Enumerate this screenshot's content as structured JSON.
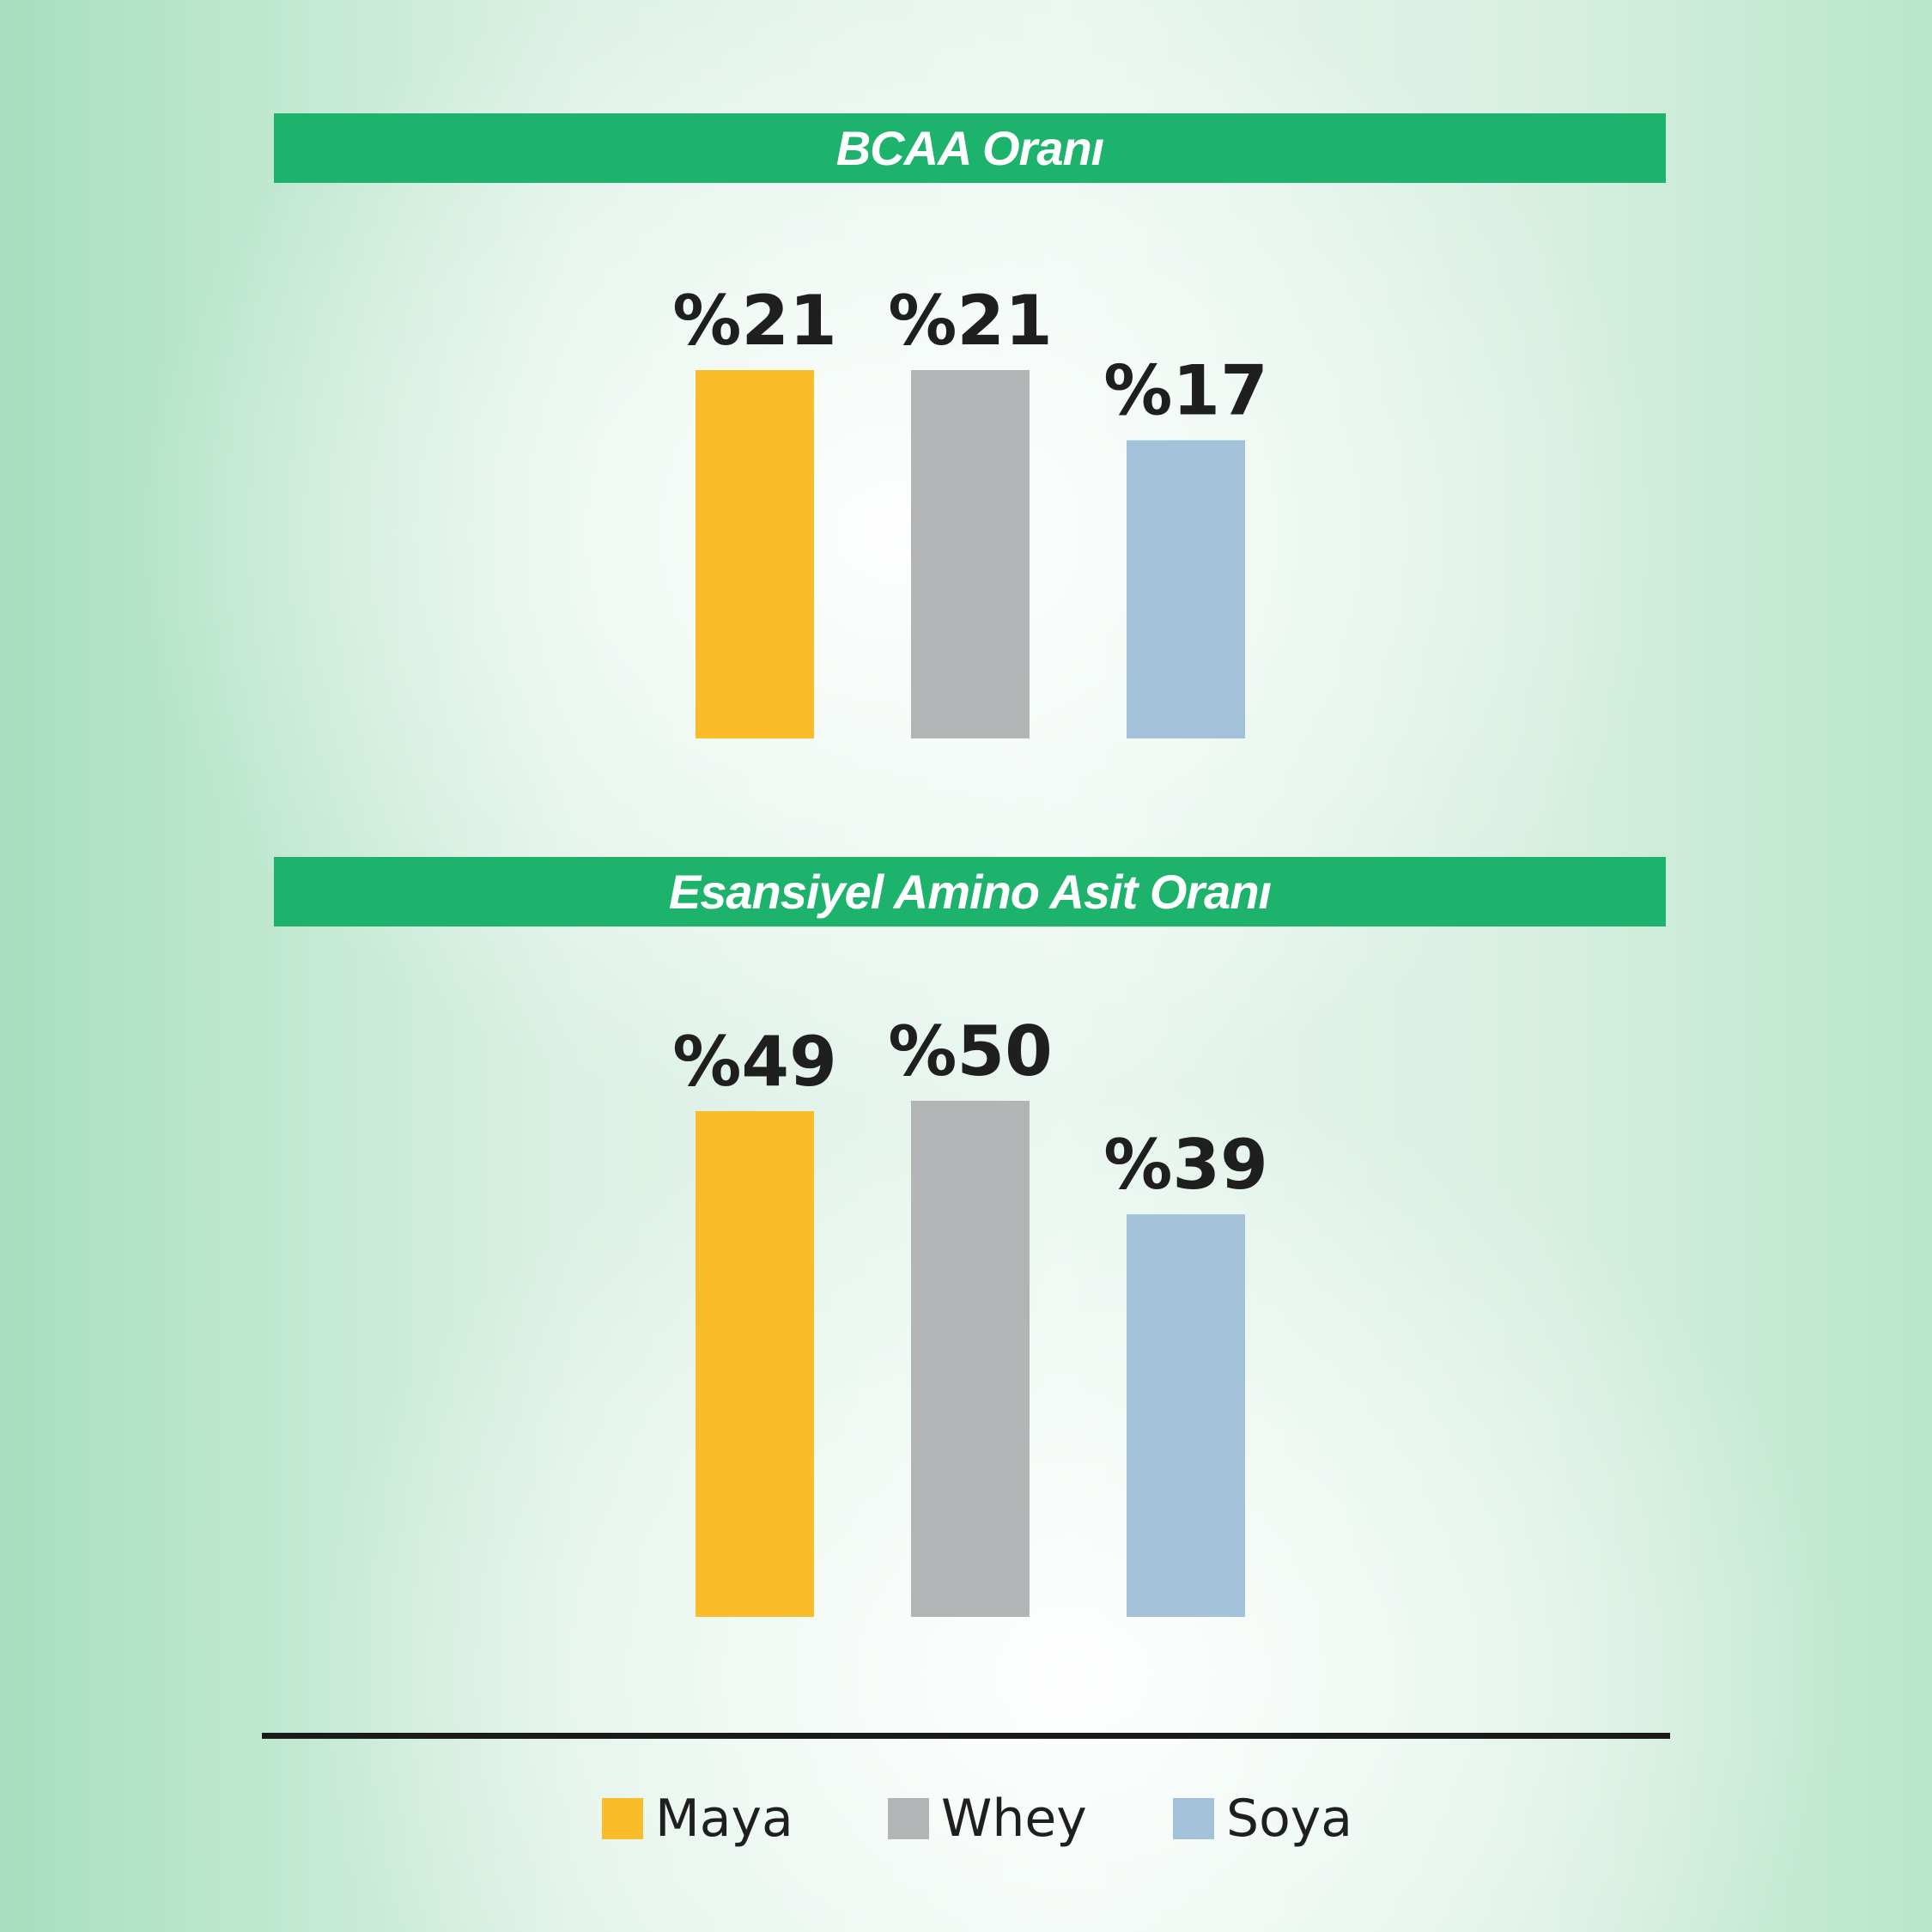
{
  "chart_data": [
    {
      "type": "bar",
      "title": "BCAA Oranı",
      "categories": [
        "Maya",
        "Whey",
        "Soya"
      ],
      "values": [
        21,
        21,
        17
      ],
      "labels": [
        "%21",
        "%21",
        "%17"
      ],
      "colors": [
        "#fbbc2a",
        "#b3b4b6",
        "#a3c1d9"
      ],
      "ylim": [
        0,
        21
      ],
      "grid": false
    },
    {
      "type": "bar",
      "title": "Esansiyel Amino Asit Oranı",
      "categories": [
        "Maya",
        "Whey",
        "Soya"
      ],
      "values": [
        49,
        50,
        39
      ],
      "labels": [
        "%49",
        "%50",
        "%39"
      ],
      "colors": [
        "#fbbc2a",
        "#b3b4b6",
        "#a3c1d9"
      ],
      "ylim": [
        0,
        50
      ],
      "grid": false
    }
  ],
  "header_color": "#1eb36c",
  "legend": [
    {
      "label": "Maya",
      "color": "#fbbc2a"
    },
    {
      "label": "Whey",
      "color": "#b3b4b6"
    },
    {
      "label": "Soya",
      "color": "#a3c1d9"
    }
  ]
}
